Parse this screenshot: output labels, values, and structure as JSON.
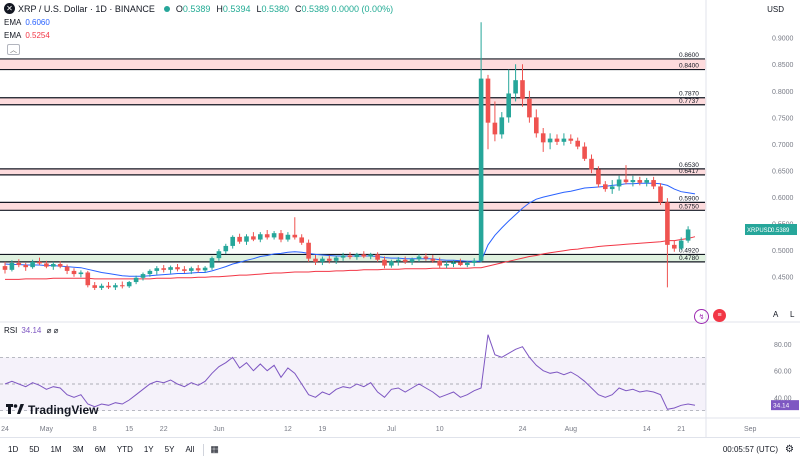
{
  "header": {
    "symbol": "XRP / U.S. Dollar · 1D · BINANCE",
    "ohlc": [
      {
        "k": "O",
        "v": "0.5389"
      },
      {
        "k": "H",
        "v": "0.5394"
      },
      {
        "k": "L",
        "v": "0.5380"
      },
      {
        "k": "C",
        "v": "0.5389 0.0000 (0.00%)"
      }
    ]
  },
  "indicators": [
    {
      "name": "EMA",
      "value": "0.6060",
      "color": "#2962ff"
    },
    {
      "name": "EMA",
      "value": "0.5254",
      "color": "#f23645"
    }
  ],
  "currency": "USD",
  "rsi": {
    "label": "RSI",
    "value": "34.14",
    "extras": "⌀ ⌀",
    "color": "#7e57c2"
  },
  "logo_text": "TradingView",
  "bottom_bar": {
    "timeframes": [
      "1D",
      "5D",
      "1M",
      "3M",
      "6M",
      "YTD",
      "1Y",
      "5Y",
      "All"
    ],
    "clock": "00:05:57 (UTC)"
  },
  "scale_buttons": {
    "auto": "A",
    "log": "L"
  },
  "chart_data": {
    "type": "candlestick",
    "price_axis_ticks": [
      "0.9000",
      "0.8500",
      "0.8000",
      "0.7500",
      "0.7000",
      "0.6500",
      "0.6000",
      "0.5500",
      "0.5000",
      "0.4500"
    ],
    "price_ylim": [
      0.4062,
      0.9333
    ],
    "x_ticks": [
      "24",
      "May",
      "8",
      "15",
      "22",
      "Jun",
      "12",
      "19",
      "Jul",
      "10",
      "24",
      "Aug",
      "14",
      "21",
      "Sep"
    ],
    "last_price_label": "XRPUSD",
    "last_price_value": "0.5389",
    "levels": [
      {
        "label": "0.8600",
        "value": 0.86
      },
      {
        "label": "0.8400",
        "value": 0.84
      },
      {
        "label": "0.7870",
        "value": 0.787
      },
      {
        "label": "0.7737",
        "value": 0.7737
      },
      {
        "label": "0.6530",
        "value": 0.653
      },
      {
        "label": "0.6417",
        "value": 0.6417
      },
      {
        "label": "0.5900",
        "value": 0.59
      },
      {
        "label": "0.5750",
        "value": 0.575
      },
      {
        "label": "0.4920",
        "value": 0.492
      },
      {
        "label": "0.4780",
        "value": 0.478
      }
    ],
    "zones": [
      {
        "from": 0.84,
        "to": 0.86,
        "color": "#f23645"
      },
      {
        "from": 0.7737,
        "to": 0.787,
        "color": "#f23645"
      },
      {
        "from": 0.6417,
        "to": 0.653,
        "color": "#f23645"
      },
      {
        "from": 0.575,
        "to": 0.59,
        "color": "#f23645"
      },
      {
        "from": 0.478,
        "to": 0.492,
        "color": "#4caf50"
      }
    ],
    "candles": [
      {
        "o": 0.47,
        "h": 0.478,
        "l": 0.456,
        "c": 0.463
      },
      {
        "o": 0.463,
        "h": 0.481,
        "l": 0.46,
        "c": 0.476
      },
      {
        "o": 0.476,
        "h": 0.483,
        "l": 0.468,
        "c": 0.472
      },
      {
        "o": 0.472,
        "h": 0.476,
        "l": 0.461,
        "c": 0.468
      },
      {
        "o": 0.468,
        "h": 0.482,
        "l": 0.465,
        "c": 0.478
      },
      {
        "o": 0.478,
        "h": 0.486,
        "l": 0.472,
        "c": 0.475
      },
      {
        "o": 0.475,
        "h": 0.48,
        "l": 0.466,
        "c": 0.469
      },
      {
        "o": 0.469,
        "h": 0.478,
        "l": 0.463,
        "c": 0.474
      },
      {
        "o": 0.474,
        "h": 0.479,
        "l": 0.466,
        "c": 0.469
      },
      {
        "o": 0.469,
        "h": 0.473,
        "l": 0.455,
        "c": 0.461
      },
      {
        "o": 0.461,
        "h": 0.466,
        "l": 0.45,
        "c": 0.455
      },
      {
        "o": 0.455,
        "h": 0.462,
        "l": 0.449,
        "c": 0.458
      },
      {
        "o": 0.458,
        "h": 0.461,
        "l": 0.43,
        "c": 0.434
      },
      {
        "o": 0.434,
        "h": 0.44,
        "l": 0.425,
        "c": 0.429
      },
      {
        "o": 0.429,
        "h": 0.437,
        "l": 0.425,
        "c": 0.433
      },
      {
        "o": 0.433,
        "h": 0.44,
        "l": 0.427,
        "c": 0.43
      },
      {
        "o": 0.43,
        "h": 0.438,
        "l": 0.425,
        "c": 0.434
      },
      {
        "o": 0.434,
        "h": 0.441,
        "l": 0.428,
        "c": 0.432
      },
      {
        "o": 0.432,
        "h": 0.442,
        "l": 0.429,
        "c": 0.44
      },
      {
        "o": 0.44,
        "h": 0.452,
        "l": 0.436,
        "c": 0.448
      },
      {
        "o": 0.448,
        "h": 0.458,
        "l": 0.443,
        "c": 0.455
      },
      {
        "o": 0.455,
        "h": 0.464,
        "l": 0.45,
        "c": 0.461
      },
      {
        "o": 0.461,
        "h": 0.47,
        "l": 0.454,
        "c": 0.466
      },
      {
        "o": 0.466,
        "h": 0.472,
        "l": 0.458,
        "c": 0.463
      },
      {
        "o": 0.463,
        "h": 0.471,
        "l": 0.456,
        "c": 0.468
      },
      {
        "o": 0.468,
        "h": 0.474,
        "l": 0.46,
        "c": 0.464
      },
      {
        "o": 0.464,
        "h": 0.47,
        "l": 0.457,
        "c": 0.461
      },
      {
        "o": 0.461,
        "h": 0.469,
        "l": 0.455,
        "c": 0.466
      },
      {
        "o": 0.466,
        "h": 0.472,
        "l": 0.458,
        "c": 0.462
      },
      {
        "o": 0.462,
        "h": 0.47,
        "l": 0.458,
        "c": 0.467
      },
      {
        "o": 0.467,
        "h": 0.488,
        "l": 0.463,
        "c": 0.485
      },
      {
        "o": 0.485,
        "h": 0.502,
        "l": 0.48,
        "c": 0.498
      },
      {
        "o": 0.498,
        "h": 0.512,
        "l": 0.493,
        "c": 0.508
      },
      {
        "o": 0.508,
        "h": 0.528,
        "l": 0.503,
        "c": 0.525
      },
      {
        "o": 0.525,
        "h": 0.531,
        "l": 0.512,
        "c": 0.516
      },
      {
        "o": 0.516,
        "h": 0.53,
        "l": 0.51,
        "c": 0.526
      },
      {
        "o": 0.526,
        "h": 0.534,
        "l": 0.517,
        "c": 0.52
      },
      {
        "o": 0.52,
        "h": 0.534,
        "l": 0.515,
        "c": 0.53
      },
      {
        "o": 0.53,
        "h": 0.538,
        "l": 0.52,
        "c": 0.524
      },
      {
        "o": 0.524,
        "h": 0.536,
        "l": 0.52,
        "c": 0.532
      },
      {
        "o": 0.532,
        "h": 0.538,
        "l": 0.515,
        "c": 0.52
      },
      {
        "o": 0.52,
        "h": 0.534,
        "l": 0.516,
        "c": 0.529
      },
      {
        "o": 0.529,
        "h": 0.562,
        "l": 0.52,
        "c": 0.524
      },
      {
        "o": 0.524,
        "h": 0.53,
        "l": 0.51,
        "c": 0.514
      },
      {
        "o": 0.514,
        "h": 0.52,
        "l": 0.478,
        "c": 0.484
      },
      {
        "o": 0.484,
        "h": 0.491,
        "l": 0.472,
        "c": 0.478
      },
      {
        "o": 0.478,
        "h": 0.488,
        "l": 0.472,
        "c": 0.484
      },
      {
        "o": 0.484,
        "h": 0.49,
        "l": 0.475,
        "c": 0.48
      },
      {
        "o": 0.48,
        "h": 0.49,
        "l": 0.474,
        "c": 0.486
      },
      {
        "o": 0.486,
        "h": 0.495,
        "l": 0.48,
        "c": 0.49
      },
      {
        "o": 0.49,
        "h": 0.496,
        "l": 0.483,
        "c": 0.487
      },
      {
        "o": 0.487,
        "h": 0.495,
        "l": 0.482,
        "c": 0.492
      },
      {
        "o": 0.492,
        "h": 0.498,
        "l": 0.485,
        "c": 0.488
      },
      {
        "o": 0.488,
        "h": 0.495,
        "l": 0.483,
        "c": 0.492
      },
      {
        "o": 0.492,
        "h": 0.496,
        "l": 0.478,
        "c": 0.482
      },
      {
        "o": 0.482,
        "h": 0.488,
        "l": 0.466,
        "c": 0.471
      },
      {
        "o": 0.471,
        "h": 0.482,
        "l": 0.467,
        "c": 0.479
      },
      {
        "o": 0.479,
        "h": 0.487,
        "l": 0.471,
        "c": 0.482
      },
      {
        "o": 0.482,
        "h": 0.488,
        "l": 0.474,
        "c": 0.478
      },
      {
        "o": 0.478,
        "h": 0.486,
        "l": 0.472,
        "c": 0.483
      },
      {
        "o": 0.483,
        "h": 0.492,
        "l": 0.478,
        "c": 0.488
      },
      {
        "o": 0.488,
        "h": 0.494,
        "l": 0.48,
        "c": 0.484
      },
      {
        "o": 0.484,
        "h": 0.491,
        "l": 0.476,
        "c": 0.48
      },
      {
        "o": 0.48,
        "h": 0.486,
        "l": 0.466,
        "c": 0.471
      },
      {
        "o": 0.471,
        "h": 0.479,
        "l": 0.466,
        "c": 0.474
      },
      {
        "o": 0.474,
        "h": 0.481,
        "l": 0.468,
        "c": 0.477
      },
      {
        "o": 0.477,
        "h": 0.484,
        "l": 0.47,
        "c": 0.472
      },
      {
        "o": 0.472,
        "h": 0.48,
        "l": 0.468,
        "c": 0.476
      },
      {
        "o": 0.476,
        "h": 0.485,
        "l": 0.47,
        "c": 0.48
      },
      {
        "o": 0.48,
        "h": 0.929,
        "l": 0.477,
        "c": 0.823
      },
      {
        "o": 0.823,
        "h": 0.83,
        "l": 0.69,
        "c": 0.74
      },
      {
        "o": 0.74,
        "h": 0.78,
        "l": 0.705,
        "c": 0.718
      },
      {
        "o": 0.718,
        "h": 0.76,
        "l": 0.71,
        "c": 0.75
      },
      {
        "o": 0.75,
        "h": 0.84,
        "l": 0.74,
        "c": 0.795
      },
      {
        "o": 0.795,
        "h": 0.85,
        "l": 0.78,
        "c": 0.82
      },
      {
        "o": 0.82,
        "h": 0.85,
        "l": 0.77,
        "c": 0.785
      },
      {
        "o": 0.785,
        "h": 0.8,
        "l": 0.74,
        "c": 0.75
      },
      {
        "o": 0.75,
        "h": 0.765,
        "l": 0.712,
        "c": 0.72
      },
      {
        "o": 0.72,
        "h": 0.73,
        "l": 0.685,
        "c": 0.703
      },
      {
        "o": 0.703,
        "h": 0.72,
        "l": 0.69,
        "c": 0.71
      },
      {
        "o": 0.71,
        "h": 0.718,
        "l": 0.698,
        "c": 0.704
      },
      {
        "o": 0.704,
        "h": 0.72,
        "l": 0.697,
        "c": 0.71
      },
      {
        "o": 0.71,
        "h": 0.718,
        "l": 0.7,
        "c": 0.706
      },
      {
        "o": 0.706,
        "h": 0.712,
        "l": 0.69,
        "c": 0.695
      },
      {
        "o": 0.695,
        "h": 0.703,
        "l": 0.668,
        "c": 0.672
      },
      {
        "o": 0.672,
        "h": 0.68,
        "l": 0.645,
        "c": 0.652
      },
      {
        "o": 0.652,
        "h": 0.658,
        "l": 0.618,
        "c": 0.624
      },
      {
        "o": 0.624,
        "h": 0.63,
        "l": 0.61,
        "c": 0.615
      },
      {
        "o": 0.615,
        "h": 0.632,
        "l": 0.606,
        "c": 0.62
      },
      {
        "o": 0.62,
        "h": 0.64,
        "l": 0.612,
        "c": 0.633
      },
      {
        "o": 0.633,
        "h": 0.66,
        "l": 0.624,
        "c": 0.628
      },
      {
        "o": 0.628,
        "h": 0.64,
        "l": 0.62,
        "c": 0.632
      },
      {
        "o": 0.632,
        "h": 0.638,
        "l": 0.622,
        "c": 0.627
      },
      {
        "o": 0.627,
        "h": 0.636,
        "l": 0.62,
        "c": 0.632
      },
      {
        "o": 0.632,
        "h": 0.638,
        "l": 0.615,
        "c": 0.62
      },
      {
        "o": 0.62,
        "h": 0.626,
        "l": 0.585,
        "c": 0.59
      },
      {
        "o": 0.59,
        "h": 0.598,
        "l": 0.43,
        "c": 0.51
      },
      {
        "o": 0.51,
        "h": 0.518,
        "l": 0.497,
        "c": 0.503
      },
      {
        "o": 0.503,
        "h": 0.524,
        "l": 0.5,
        "c": 0.518
      },
      {
        "o": 0.518,
        "h": 0.545,
        "l": 0.514,
        "c": 0.539
      }
    ],
    "ema_blue": [
      0.474,
      0.473,
      0.473,
      0.472,
      0.472,
      0.472,
      0.471,
      0.471,
      0.47,
      0.469,
      0.468,
      0.467,
      0.464,
      0.461,
      0.458,
      0.456,
      0.454,
      0.452,
      0.451,
      0.451,
      0.451,
      0.452,
      0.453,
      0.454,
      0.455,
      0.456,
      0.456,
      0.457,
      0.458,
      0.458,
      0.461,
      0.465,
      0.469,
      0.474,
      0.477,
      0.481,
      0.484,
      0.488,
      0.49,
      0.493,
      0.494,
      0.496,
      0.497,
      0.496,
      0.494,
      0.492,
      0.491,
      0.49,
      0.489,
      0.489,
      0.489,
      0.489,
      0.489,
      0.489,
      0.488,
      0.486,
      0.485,
      0.485,
      0.484,
      0.484,
      0.484,
      0.484,
      0.484,
      0.482,
      0.481,
      0.481,
      0.48,
      0.479,
      0.479,
      0.479,
      0.51,
      0.528,
      0.542,
      0.555,
      0.567,
      0.579,
      0.589,
      0.596,
      0.6,
      0.603,
      0.606,
      0.609,
      0.611,
      0.614,
      0.617,
      0.618,
      0.619,
      0.62,
      0.622,
      0.623,
      0.625,
      0.625,
      0.626,
      0.626,
      0.626,
      0.625,
      0.622,
      0.615,
      0.61,
      0.608,
      0.606
    ],
    "ema_red": [
      0.445,
      0.445,
      0.445,
      0.446,
      0.446,
      0.446,
      0.446,
      0.447,
      0.447,
      0.447,
      0.447,
      0.447,
      0.447,
      0.446,
      0.446,
      0.446,
      0.446,
      0.446,
      0.446,
      0.446,
      0.446,
      0.446,
      0.447,
      0.447,
      0.447,
      0.448,
      0.448,
      0.448,
      0.449,
      0.449,
      0.45,
      0.45,
      0.451,
      0.452,
      0.453,
      0.453,
      0.454,
      0.455,
      0.456,
      0.457,
      0.457,
      0.458,
      0.459,
      0.459,
      0.459,
      0.46,
      0.46,
      0.46,
      0.461,
      0.461,
      0.462,
      0.462,
      0.463,
      0.463,
      0.463,
      0.464,
      0.464,
      0.464,
      0.465,
      0.465,
      0.465,
      0.465,
      0.466,
      0.466,
      0.466,
      0.466,
      0.466,
      0.466,
      0.467,
      0.467,
      0.47,
      0.473,
      0.476,
      0.479,
      0.482,
      0.485,
      0.488,
      0.49,
      0.493,
      0.495,
      0.497,
      0.499,
      0.501,
      0.502,
      0.504,
      0.505,
      0.507,
      0.508,
      0.509,
      0.51,
      0.511,
      0.512,
      0.513,
      0.514,
      0.515,
      0.516,
      0.518,
      0.518,
      0.52,
      0.522,
      0.5254
    ],
    "rsi_ticks": [
      "80.00",
      "60.00",
      "40.00"
    ],
    "rsi_ylim": [
      26,
      92
    ],
    "rsi_band": [
      30,
      70
    ],
    "rsi_values": [
      50,
      52,
      50,
      48,
      51,
      49,
      46,
      48,
      47,
      42,
      40,
      42,
      35,
      33,
      35,
      34,
      36,
      35,
      38,
      42,
      46,
      50,
      52,
      51,
      53,
      50,
      48,
      51,
      49,
      52,
      58,
      63,
      66,
      70,
      62,
      66,
      60,
      65,
      60,
      64,
      55,
      62,
      58,
      50,
      42,
      40,
      44,
      42,
      46,
      48,
      47,
      50,
      48,
      51,
      44,
      40,
      46,
      47,
      44,
      47,
      50,
      47,
      44,
      40,
      42,
      44,
      40,
      42,
      45,
      47,
      87,
      72,
      70,
      73,
      76,
      78,
      70,
      64,
      60,
      58,
      59,
      57,
      59,
      56,
      52,
      47,
      42,
      40,
      42,
      47,
      45,
      46,
      44,
      45,
      44,
      42,
      31,
      32,
      34,
      35,
      34
    ]
  }
}
